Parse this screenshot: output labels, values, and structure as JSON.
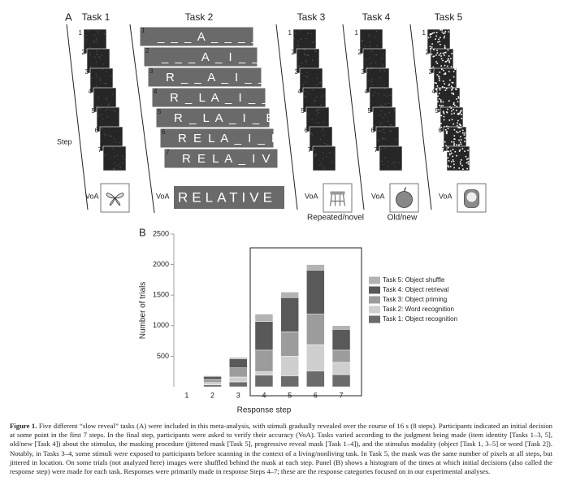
{
  "panel_a": {
    "label": "A",
    "step_label": "Step",
    "tasks": [
      {
        "title": "Task 1",
        "steps": [
          1,
          2,
          3,
          4,
          5,
          6,
          7
        ],
        "final": "VoA"
      },
      {
        "title": "Task 2",
        "steps": [
          1,
          2,
          3,
          4,
          5,
          6,
          7
        ],
        "final": "VoA",
        "words": [
          "_ _ _ A _ _ _ _",
          "_ _ _ A _ I _ _",
          "R _ _ A _ I _ _",
          "R _ L A _ I _ _",
          "R _ L A _ I _ E",
          "R E L A _ I _ E",
          "R E L A _ I V E"
        ],
        "final_word": "RELATIVE"
      },
      {
        "title": "Task 3",
        "steps": [
          1,
          2,
          3,
          4,
          5,
          6,
          7
        ],
        "final": "VoA",
        "judgment": "Repeated/novel"
      },
      {
        "title": "Task 4",
        "steps": [
          1,
          2,
          3,
          4,
          5,
          6,
          7
        ],
        "final": "VoA",
        "judgment": "Old/new"
      },
      {
        "title": "Task 5",
        "steps": [
          1,
          2,
          3,
          4,
          5,
          6,
          7
        ],
        "final": "VoA"
      }
    ]
  },
  "chart_data": {
    "type": "stacked_bar",
    "panel_label": "B",
    "y_label": "Number of trials",
    "x_label": "Response step",
    "categories": [
      "1",
      "2",
      "3",
      "4",
      "5",
      "6",
      "7"
    ],
    "ylim": [
      0,
      2500
    ],
    "yticks": [
      500,
      1000,
      1500,
      2000,
      2500
    ],
    "series": [
      {
        "name": "Task 1: Object recognition",
        "color": "#6b6b6b",
        "values": [
          5,
          30,
          80,
          190,
          180,
          260,
          200
        ]
      },
      {
        "name": "Task 2: Word recognition",
        "color": "#cfcfcf",
        "values": [
          5,
          40,
          80,
          60,
          320,
          430,
          200
        ]
      },
      {
        "name": "Task 3: Object priming",
        "color": "#9c9c9c",
        "values": [
          5,
          50,
          150,
          350,
          400,
          500,
          200
        ]
      },
      {
        "name": "Task 4: Object retrieval",
        "color": "#595959",
        "values": [
          5,
          50,
          150,
          470,
          560,
          720,
          340
        ]
      },
      {
        "name": "Task 5: Object shuffle",
        "color": "#b3b3b3",
        "values": [
          0,
          10,
          20,
          120,
          90,
          90,
          60
        ]
      }
    ]
  },
  "caption": {
    "label": "Figure 1.",
    "text": "Five different “slow reveal” tasks (A) were included in this meta-analysis, with stimuli gradually revealed over the course of 16 s (8 steps). Participants indicated an initial decision at some point in the first 7 steps. In the final step, participants were asked to verify their accuracy (VoA). Tasks varied according to the judgment being made (item identity [Tasks 1–3, 5], old/new [Task 4]) about the stimulus, the masking procedure (jittered mask [Task 5], progressive reveal mask [Task 1–4]), and the stimulus modality (object [Task 1, 3–5] or word [Task 2]). Notably, in Tasks 3–4, some stimuli were exposed to participants before scanning in the context of a living/nonliving task. In Task 5, the mask was the same number of pixels at all steps, but jittered in location. On some trials (not analyzed here) images were shuffled behind the mask at each step. Panel (B) shows a histogram of the times at which initial decisions (also called the response step) were made for each task. Responses were primarily made in response Steps 4–7; these are the response categories focused on in our experimental analyses."
  }
}
